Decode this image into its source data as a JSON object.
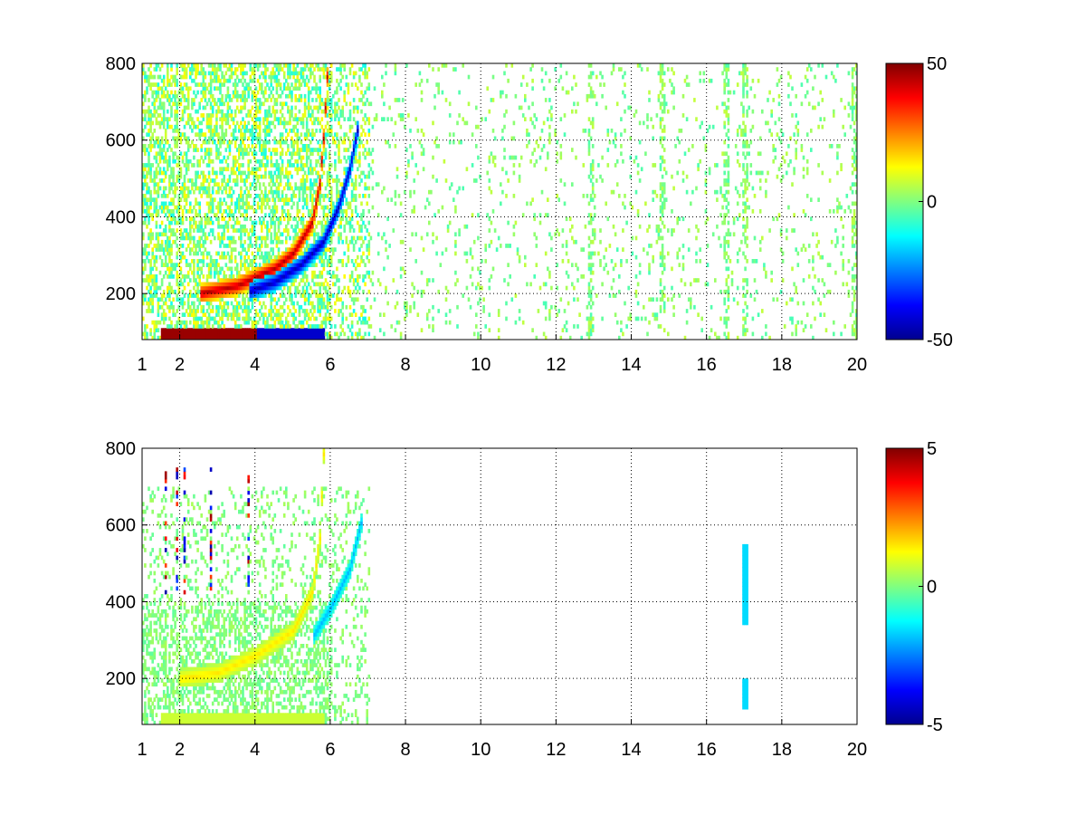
{
  "chart_data": [
    {
      "type": "heatmap",
      "title": "",
      "xlabel": "",
      "ylabel": "",
      "xlim": [
        1,
        20
      ],
      "ylim": [
        80,
        800
      ],
      "grid": true,
      "grid_style": "dotted",
      "colormap": "jet",
      "x_ticks": [
        "1",
        "2",
        "4",
        "6",
        "8",
        "10",
        "12",
        "14",
        "16",
        "18",
        "20"
      ],
      "y_ticks": [
        "200",
        "400",
        "600",
        "800"
      ],
      "colorbar": {
        "range": [
          -50,
          50
        ],
        "ticks": [
          "50",
          "0",
          "-50"
        ]
      },
      "features": [
        {
          "kind": "ridge",
          "sign": "positive",
          "points": [
            [
              2.5,
              195
            ],
            [
              3.5,
              215
            ],
            [
              4.5,
              260
            ],
            [
              5.0,
              300
            ],
            [
              5.5,
              380
            ],
            [
              5.7,
              480
            ],
            [
              5.8,
              600
            ],
            [
              5.9,
              760
            ]
          ],
          "intensity": 0.9
        },
        {
          "kind": "ridge",
          "sign": "negative",
          "points": [
            [
              3.8,
              200
            ],
            [
              4.5,
              225
            ],
            [
              5.2,
              270
            ],
            [
              5.8,
              330
            ],
            [
              6.2,
              420
            ],
            [
              6.5,
              520
            ],
            [
              6.7,
              620
            ]
          ],
          "intensity": 0.9
        },
        {
          "kind": "band",
          "sign": "positive",
          "y": 90,
          "x_range": [
            1.5,
            4.0
          ],
          "intensity": 0.95
        },
        {
          "kind": "band",
          "sign": "negative",
          "y": 90,
          "x_range": [
            4.0,
            5.8
          ],
          "intensity": 0.85
        },
        {
          "kind": "columns",
          "x": [
            12.9,
            14.8,
            16.5,
            17.0,
            19.9
          ],
          "level": 0.05
        }
      ]
    },
    {
      "type": "heatmap",
      "title": "",
      "xlabel": "",
      "ylabel": "",
      "xlim": [
        1,
        20
      ],
      "ylim": [
        80,
        800
      ],
      "grid": true,
      "grid_style": "dotted",
      "colormap": "jet",
      "x_ticks": [
        "1",
        "2",
        "4",
        "6",
        "8",
        "10",
        "12",
        "14",
        "16",
        "18",
        "20"
      ],
      "y_ticks": [
        "200",
        "400",
        "600",
        "800"
      ],
      "colorbar": {
        "range": [
          -5,
          5
        ],
        "ticks": [
          "5",
          "0",
          "-5"
        ]
      },
      "features": [
        {
          "kind": "ridge",
          "sign": "positive",
          "points": [
            [
              2.0,
              195
            ],
            [
              3.0,
              210
            ],
            [
              4.0,
              255
            ],
            [
              5.0,
              320
            ],
            [
              5.5,
              420
            ],
            [
              5.7,
              560
            ],
            [
              5.8,
              780
            ]
          ],
          "intensity": 0.3
        },
        {
          "kind": "ridge",
          "sign": "negative",
          "points": [
            [
              5.5,
              300
            ],
            [
              6.0,
              380
            ],
            [
              6.5,
              480
            ],
            [
              6.8,
              600
            ]
          ],
          "intensity": 0.4
        },
        {
          "kind": "band",
          "sign": "positive",
          "y": 90,
          "x_range": [
            1.5,
            5.8
          ],
          "intensity": 0.15
        },
        {
          "kind": "segment",
          "x": 17.0,
          "y_range": [
            340,
            540
          ],
          "value": -1.6
        },
        {
          "kind": "segment",
          "x": 17.0,
          "y_range": [
            120,
            190
          ],
          "value": -1.6
        },
        {
          "kind": "spikes",
          "x": [
            1.6,
            1.9,
            2.1,
            2.8,
            3.8
          ],
          "y_range": [
            420,
            740
          ],
          "value": 4.0
        }
      ]
    }
  ]
}
